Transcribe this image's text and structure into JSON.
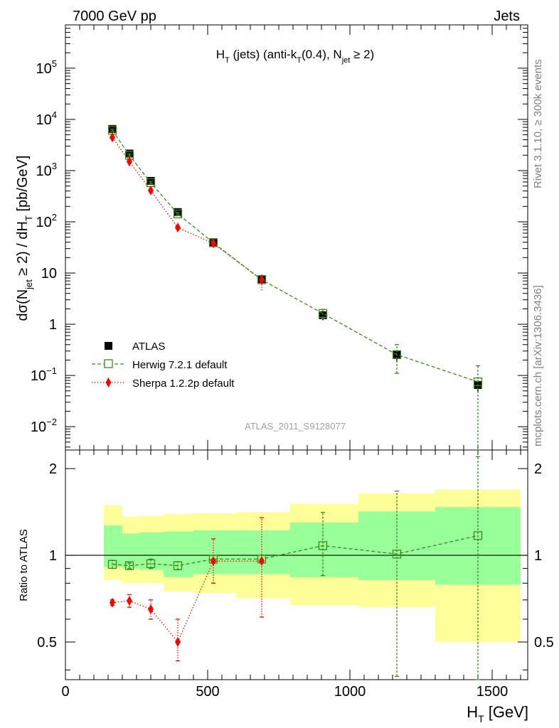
{
  "header": {
    "left": "7000 GeV pp",
    "right": "Jets"
  },
  "side_labels": {
    "rivet": "Rivet 3.1.10, ≥ 300k events",
    "mcplots": "mcplots.cern.ch [arXiv:1306.3436]"
  },
  "analysis_id": "ATLAS_2011_S9128077",
  "colors": {
    "atlas": "#000000",
    "herwig": "#3a8a1a",
    "sherpa": "#ff0000",
    "band_inner": "#99ff99",
    "band_outer": "#ffff99"
  },
  "chart_data": [
    {
      "type": "scatter",
      "name": "main",
      "title": {
        "base": "H",
        "sub": "T",
        "rest": " (jets) (anti-k",
        "sub2": "T",
        "rest2": "(0.4), N",
        "sub3": "jet",
        "rest3": " ≥ 2)"
      },
      "ylabel": {
        "p1": "dσ(N",
        "s1": "jet",
        "p2": " ≥ 2) / dH",
        "s2": "T",
        "p3": " [pb/GeV]"
      },
      "yscale": "log",
      "xlim": [
        0,
        1625
      ],
      "ylim": [
        0.0035,
        700000
      ],
      "y_ticks": [
        {
          "value": 0.01,
          "base": "10",
          "exp": "−2"
        },
        {
          "value": 0.1,
          "base": "10",
          "exp": "−1"
        },
        {
          "value": 1,
          "base": "1",
          "exp": ""
        },
        {
          "value": 10,
          "base": "10",
          "exp": ""
        },
        {
          "value": 100,
          "base": "10",
          "exp": "2"
        },
        {
          "value": 1000,
          "base": "10",
          "exp": "3"
        },
        {
          "value": 10000,
          "base": "10",
          "exp": "4"
        },
        {
          "value": 100000,
          "base": "10",
          "exp": "5"
        }
      ],
      "legend": {
        "position": "bottom-left",
        "entries": [
          "ATLAS",
          "Herwig 7.2.1 default",
          "Sherpa 1.2.2p default"
        ]
      },
      "series": [
        {
          "name": "ATLAS",
          "x": [
            165,
            225,
            300,
            395,
            520,
            690,
            905,
            1165,
            1450
          ],
          "y": [
            6500,
            2150,
            630,
            155,
            40,
            7.6,
            1.5,
            0.25,
            0.065
          ],
          "y_err_rel": [
            0.12,
            0.12,
            0.12,
            0.14,
            0.15,
            0.17,
            0.2,
            0.25,
            0.25
          ]
        },
        {
          "name": "Herwig 7.2.1 default",
          "x": [
            165,
            225,
            300,
            395,
            520,
            690,
            905,
            1165,
            1450
          ],
          "y": [
            6100,
            1990,
            580,
            143,
            39,
            7.4,
            1.62,
            0.255,
            0.075
          ],
          "y_lo": [
            5800,
            1900,
            550,
            135,
            37,
            7.0,
            1.3,
            0.11,
            0.0035
          ],
          "y_hi": [
            6400,
            2100,
            610,
            151,
            41,
            7.8,
            1.95,
            0.4,
            0.155
          ]
        },
        {
          "name": "Sherpa 1.2.2p default",
          "x": [
            165,
            225,
            300,
            395,
            520,
            690
          ],
          "y": [
            4450,
            1500,
            410,
            77,
            38,
            7.3
          ],
          "y_lo": [
            4350,
            1450,
            385,
            67,
            34,
            4.6
          ],
          "y_hi": [
            4550,
            1550,
            435,
            87,
            42,
            10.0
          ]
        }
      ]
    },
    {
      "type": "scatter",
      "name": "ratio",
      "ylabel": "Ratio to ATLAS",
      "xlabel": {
        "base": "H",
        "sub": "T",
        "rest": " [GeV]"
      },
      "xlim": [
        0,
        1625
      ],
      "ylim": [
        0.37,
        2.32
      ],
      "x_ticks": [
        0,
        500,
        1000,
        1500
      ],
      "y_ticks": [
        0.5,
        1,
        2
      ],
      "reference_line": 1,
      "bands": {
        "edges": [
          135,
          200,
          260,
          345,
          450,
          600,
          790,
          1030,
          1300,
          1600
        ],
        "inner_lo": [
          0.91,
          0.9,
          0.89,
          0.84,
          0.86,
          0.86,
          0.84,
          0.82,
          0.79
        ],
        "inner_hi": [
          1.27,
          1.19,
          1.2,
          1.21,
          1.22,
          1.22,
          1.3,
          1.42,
          1.47
        ],
        "outer_lo": [
          0.82,
          0.8,
          0.8,
          0.75,
          0.74,
          0.71,
          0.67,
          0.66,
          0.5
        ],
        "outer_hi": [
          1.49,
          1.36,
          1.37,
          1.39,
          1.4,
          1.41,
          1.51,
          1.64,
          1.69
        ]
      },
      "series": [
        {
          "name": "Herwig 7.2.1 default",
          "x": [
            165,
            225,
            300,
            395,
            520,
            690,
            905,
            1165,
            1450
          ],
          "y": [
            0.93,
            0.92,
            0.935,
            0.92,
            0.97,
            0.97,
            1.08,
            1.01,
            1.17
          ],
          "y_lo": [
            0.9,
            0.9,
            0.9,
            0.89,
            0.94,
            0.94,
            0.85,
            0.38,
            0.37
          ],
          "y_hi": [
            0.96,
            0.94,
            0.97,
            0.95,
            1.0,
            1.0,
            1.41,
            1.67,
            2.2
          ]
        },
        {
          "name": "Sherpa 1.2.2p default",
          "x": [
            165,
            225,
            300,
            395,
            520,
            690
          ],
          "y": [
            0.685,
            0.695,
            0.65,
            0.5,
            0.955,
            0.955
          ],
          "y_lo": [
            0.67,
            0.66,
            0.6,
            0.43,
            0.8,
            0.61
          ],
          "y_hi": [
            0.7,
            0.73,
            0.7,
            0.6,
            1.14,
            1.35
          ]
        }
      ]
    }
  ]
}
